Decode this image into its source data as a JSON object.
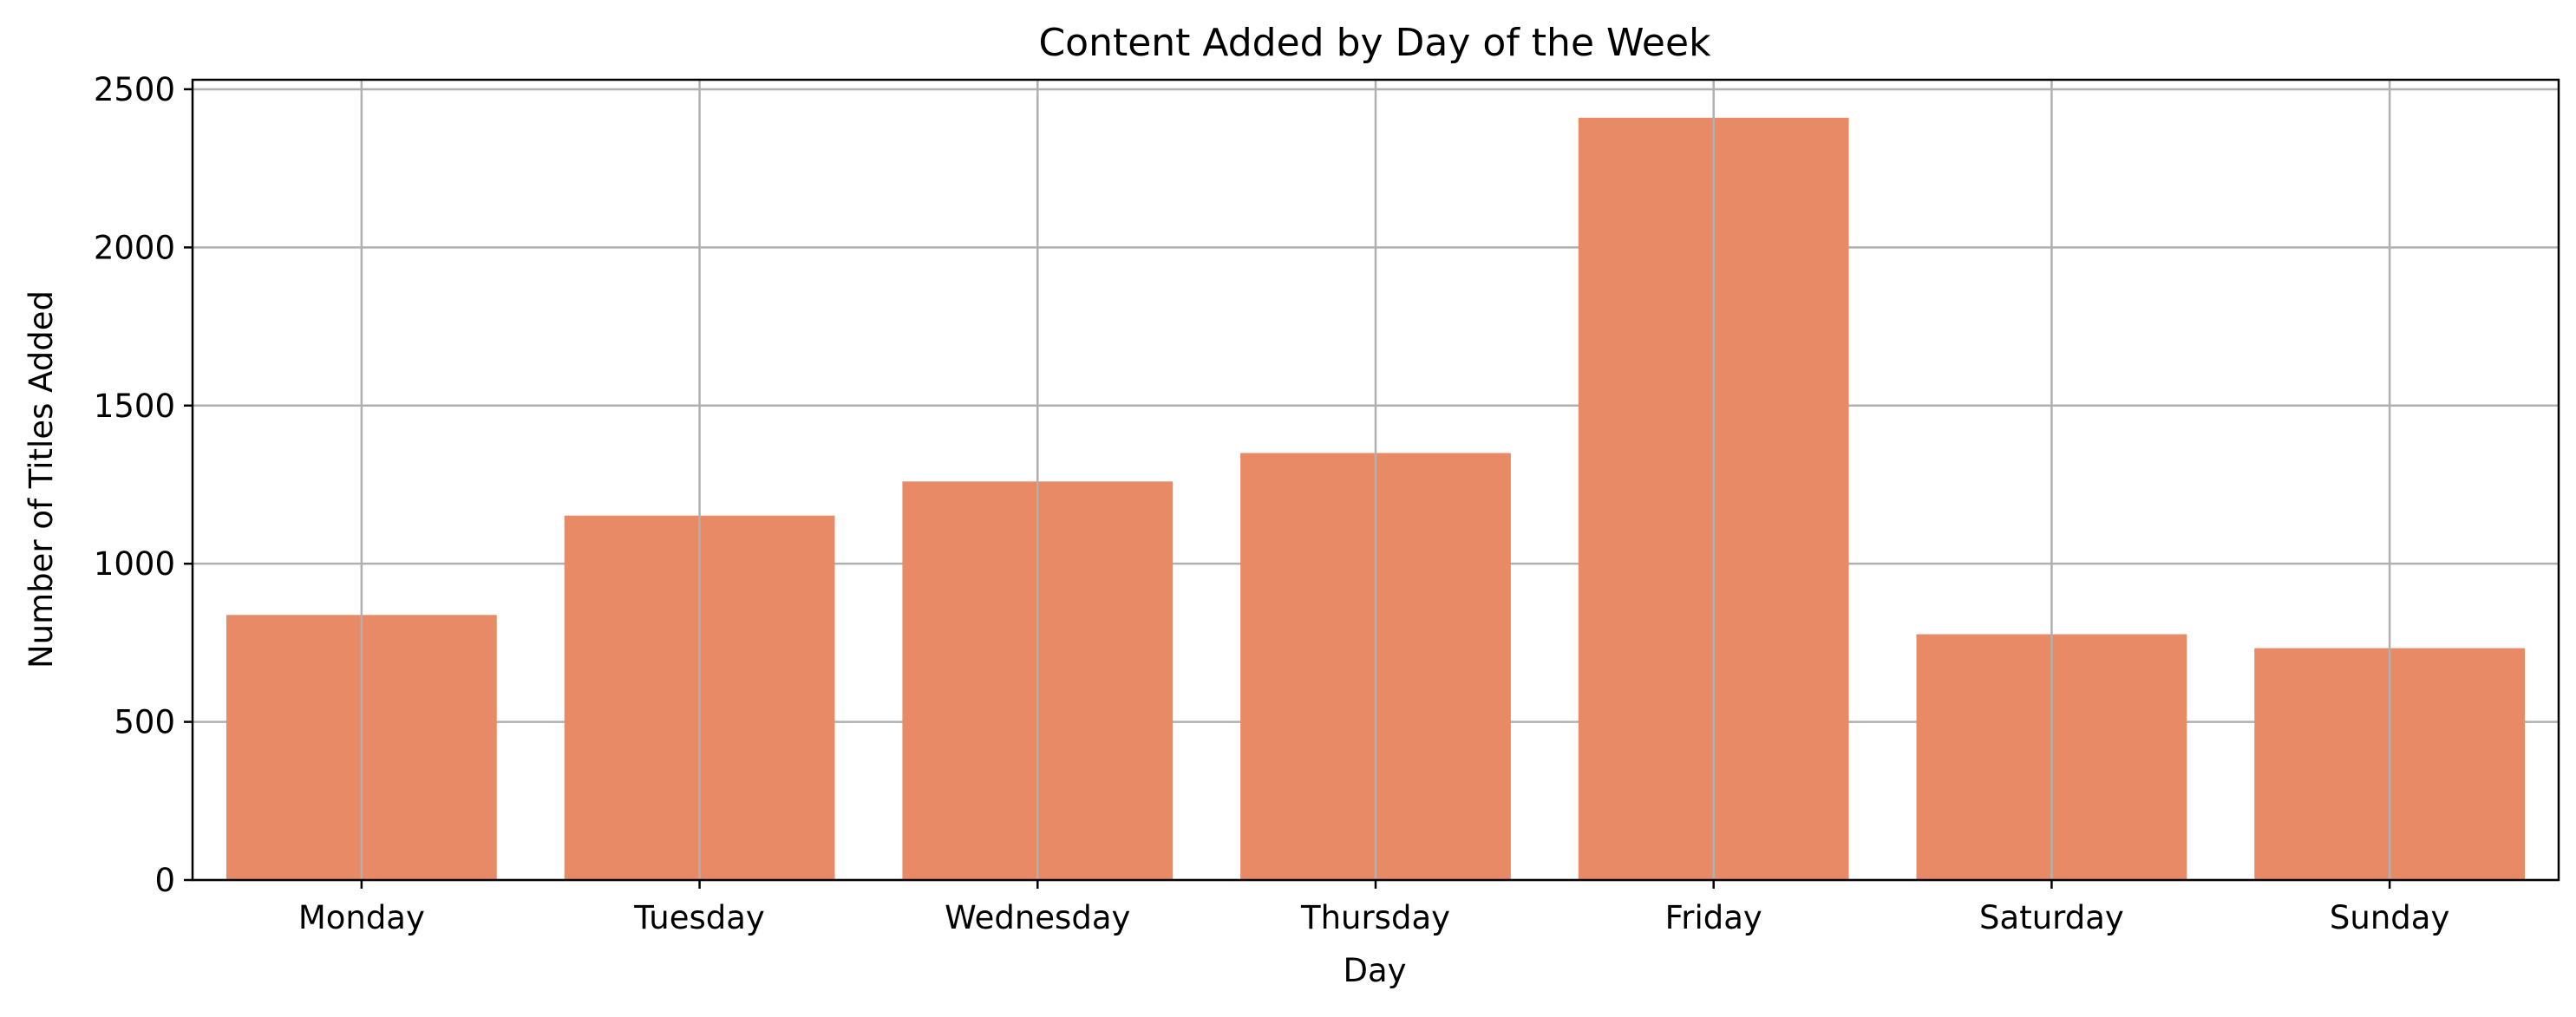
{
  "chart_data": {
    "type": "bar",
    "title": "Content Added by Day of the Week",
    "xlabel": "Day",
    "ylabel": "Number of Titles Added",
    "categories": [
      "Monday",
      "Tuesday",
      "Wednesday",
      "Thursday",
      "Friday",
      "Saturday",
      "Sunday"
    ],
    "values": [
      838,
      1152,
      1260,
      1350,
      2410,
      777,
      733
    ],
    "ylim": [
      0,
      2530
    ],
    "yticks": [
      0,
      500,
      1000,
      1500,
      2000,
      2500
    ],
    "ytick_labels": [
      "0",
      "500",
      "1000",
      "1500",
      "2000",
      "2500"
    ],
    "grid": true,
    "bar_color": "#E98A66",
    "grid_color": "#B0B0B0",
    "axis_color": "#000000"
  }
}
